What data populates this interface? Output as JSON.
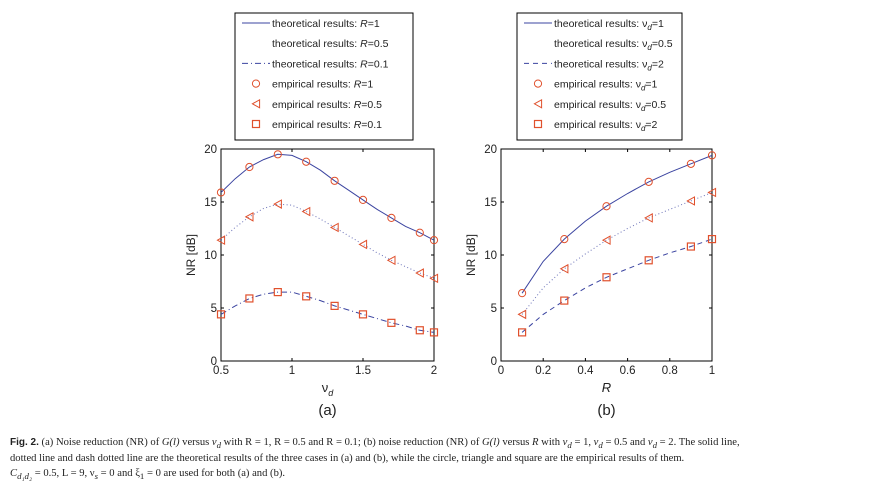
{
  "chart_data": [
    {
      "type": "line",
      "panel_label": "(a)",
      "xlabel": "ν",
      "xlabel_sub": "d",
      "ylabel": "NR [dB]",
      "xlim": [
        0.5,
        2
      ],
      "ylim": [
        0,
        20
      ],
      "xticks": [
        "0.5",
        "1",
        "1.5",
        "2"
      ],
      "xtick_values": [
        0.5,
        1,
        1.5,
        2
      ],
      "yticks": [
        "0",
        "5",
        "10",
        "15",
        "20"
      ],
      "ytick_values": [
        0,
        5,
        10,
        15,
        20
      ],
      "legend_position": "top",
      "theory_x": [
        0.5,
        0.6,
        0.7,
        0.8,
        0.9,
        1.0,
        1.1,
        1.2,
        1.3,
        1.4,
        1.5,
        1.6,
        1.7,
        1.8,
        1.9,
        2.0
      ],
      "empirical_x": [
        0.5,
        0.7,
        0.9,
        1.1,
        1.3,
        1.5,
        1.7,
        1.9,
        2.0
      ],
      "series": [
        {
          "name": "theoretical results: R=1",
          "legend_prefix": "theoretical results: ",
          "legend_var": "R",
          "legend_value": "=1",
          "style": "solid",
          "kind": "line",
          "values": [
            15.9,
            17.2,
            18.3,
            19.0,
            19.5,
            19.4,
            18.8,
            18.0,
            17.0,
            16.1,
            15.2,
            14.3,
            13.5,
            12.7,
            12.1,
            11.4
          ]
        },
        {
          "name": "theoretical results: R=0.5",
          "legend_prefix": "theoretical results: ",
          "legend_var": "R",
          "legend_value": "=0.5",
          "style": "dotted",
          "kind": "line",
          "values": [
            11.4,
            12.6,
            13.6,
            14.4,
            14.8,
            14.7,
            14.1,
            13.4,
            12.6,
            11.8,
            11.0,
            10.2,
            9.5,
            8.9,
            8.3,
            7.8
          ]
        },
        {
          "name": "theoretical results: R=0.1",
          "legend_prefix": "theoretical results: ",
          "legend_var": "R",
          "legend_value": "=0.1",
          "style": "dashdot",
          "kind": "line",
          "values": [
            4.4,
            5.2,
            5.9,
            6.3,
            6.5,
            6.5,
            6.1,
            5.7,
            5.2,
            4.8,
            4.4,
            4.0,
            3.6,
            3.3,
            2.9,
            2.7
          ]
        },
        {
          "name": "empirical results: R=1",
          "legend_prefix": "empirical results: ",
          "legend_var": "R",
          "legend_value": "=1",
          "marker": "circle",
          "kind": "marker",
          "values": [
            15.9,
            18.3,
            19.5,
            18.8,
            17.0,
            15.2,
            13.5,
            12.1,
            11.4
          ]
        },
        {
          "name": "empirical results: R=0.5",
          "legend_prefix": "empirical results: ",
          "legend_var": "R",
          "legend_value": "=0.5",
          "marker": "triangle",
          "kind": "marker",
          "values": [
            11.4,
            13.6,
            14.8,
            14.1,
            12.6,
            11.0,
            9.5,
            8.3,
            7.8
          ]
        },
        {
          "name": "empirical results: R=0.1",
          "legend_prefix": "empirical results: ",
          "legend_var": "R",
          "legend_value": "=0.1",
          "marker": "square",
          "kind": "marker",
          "values": [
            4.4,
            5.9,
            6.5,
            6.1,
            5.2,
            4.4,
            3.6,
            2.9,
            2.7
          ]
        }
      ]
    },
    {
      "type": "line",
      "panel_label": "(b)",
      "xlabel": "R",
      "xlabel_sub": "",
      "ylabel": "NR [dB]",
      "xlim": [
        0,
        1
      ],
      "ylim": [
        0,
        20
      ],
      "xticks": [
        "0",
        "0.2",
        "0.4",
        "0.6",
        "0.8",
        "1"
      ],
      "xtick_values": [
        0,
        0.2,
        0.4,
        0.6,
        0.8,
        1
      ],
      "yticks": [
        "0",
        "5",
        "10",
        "15",
        "20"
      ],
      "ytick_values": [
        0,
        5,
        10,
        15,
        20
      ],
      "legend_position": "top",
      "theory_x": [
        0.1,
        0.2,
        0.3,
        0.4,
        0.5,
        0.6,
        0.7,
        0.8,
        0.9,
        1.0
      ],
      "empirical_x": [
        0.1,
        0.3,
        0.5,
        0.7,
        0.9,
        1.0
      ],
      "series": [
        {
          "name": "theoretical results: νd=1",
          "legend_prefix": "theoretical results: ",
          "legend_var": "ν",
          "legend_sub": "d",
          "legend_value": "=1",
          "style": "solid",
          "kind": "line",
          "values": [
            6.4,
            9.4,
            11.5,
            13.2,
            14.6,
            15.8,
            16.9,
            17.8,
            18.6,
            19.4
          ]
        },
        {
          "name": "theoretical results: νd=0.5",
          "legend_prefix": "theoretical results: ",
          "legend_var": "ν",
          "legend_sub": "d",
          "legend_value": "=0.5",
          "style": "dotted",
          "kind": "line",
          "values": [
            4.4,
            6.9,
            8.7,
            10.1,
            11.4,
            12.5,
            13.5,
            14.3,
            15.1,
            15.9
          ]
        },
        {
          "name": "theoretical results: νd=2",
          "legend_prefix": "theoretical results: ",
          "legend_var": "ν",
          "legend_sub": "d",
          "legend_value": "=2",
          "style": "dashed",
          "kind": "line",
          "values": [
            2.7,
            4.4,
            5.7,
            6.9,
            7.9,
            8.7,
            9.5,
            10.2,
            10.8,
            11.5
          ]
        },
        {
          "name": "empirical results: νd=1",
          "legend_prefix": "empirical results: ",
          "legend_var": "ν",
          "legend_sub": "d",
          "legend_value": "=1",
          "marker": "circle",
          "kind": "marker",
          "values": [
            6.4,
            11.5,
            14.6,
            16.9,
            18.6,
            19.4
          ]
        },
        {
          "name": "empirical results: νd=0.5",
          "legend_prefix": "empirical results: ",
          "legend_var": "ν",
          "legend_sub": "d",
          "legend_value": "=0.5",
          "marker": "triangle",
          "kind": "marker",
          "values": [
            4.4,
            8.7,
            11.4,
            13.5,
            15.1,
            15.9
          ]
        },
        {
          "name": "empirical results: νd=2",
          "legend_prefix": "empirical results: ",
          "legend_var": "ν",
          "legend_sub": "d",
          "legend_value": "=2",
          "marker": "square",
          "kind": "marker",
          "values": [
            2.7,
            5.7,
            7.9,
            9.5,
            10.8,
            11.5
          ]
        }
      ]
    }
  ],
  "colors": {
    "line": "#3b44a0",
    "marker": "#e0502c",
    "axis": "#000000",
    "text": "#222222"
  },
  "caption": {
    "fig_label": "Fig. 2.",
    "line1_a": " (a) Noise reduction (NR) of ",
    "g": "G(l)",
    "line1_b": " versus ",
    "nu_d": "ν",
    "sub_d": "d",
    "line1_c": " with ",
    "line1_d": "R = 1,  R = 0.5 and R = 0.1; (b) noise reduction (NR) of ",
    "line1_e": " versus ",
    "line1_f": "R",
    "line1_g": " with ",
    "line1_h": "ν",
    "line1_h_sub": "d",
    "line1_i": " = 1,  ",
    "line1_j": " = 0.5 and ",
    "line1_k": " = 2. The solid line,",
    "line2": "dotted line and dash dotted line are the theoretical results of the three cases in (a) and (b), while the circle, triangle and square are the empirical results of them.",
    "line3_c": "C",
    "line3_c_sub": "d₁d₂",
    "line3_a": " = 0.5,  L = 9,  ν",
    "line3_s": "s",
    "line3_b": " = 0 and ξ",
    "line3_1": "1",
    "line3_d": " = 0 are used for both (a) and (b)."
  }
}
